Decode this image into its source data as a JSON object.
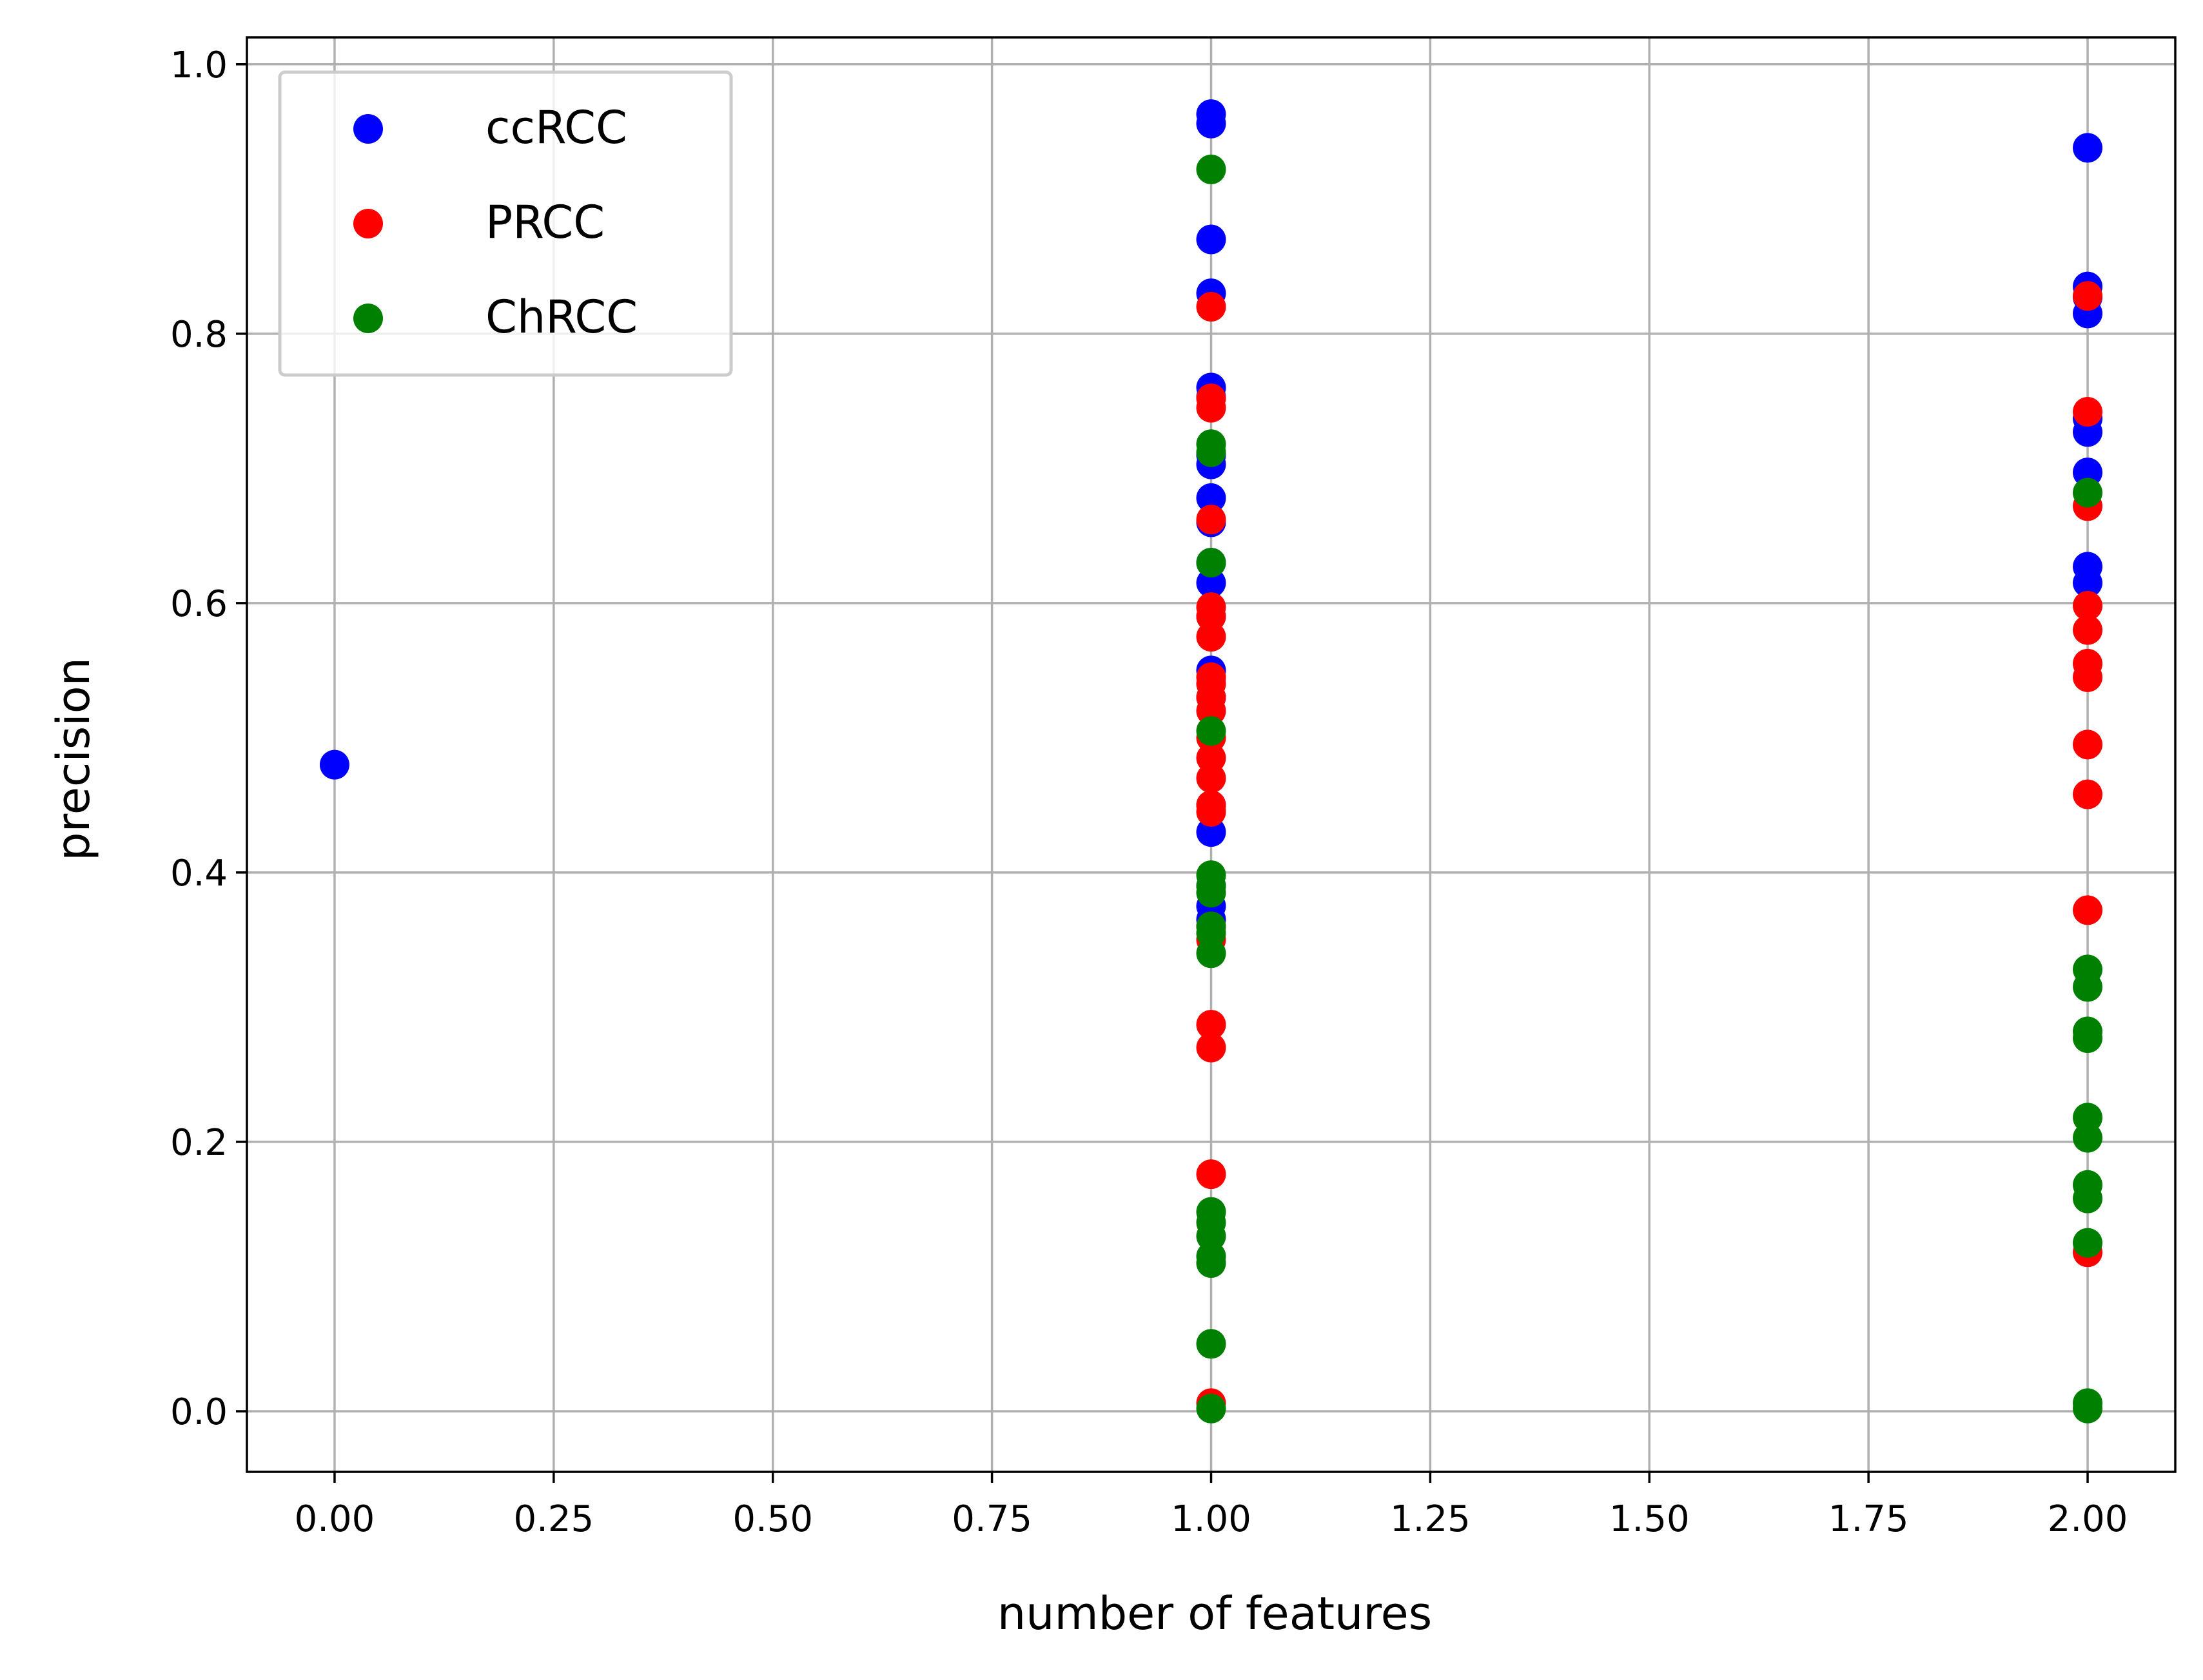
{
  "chart_data": {
    "type": "scatter",
    "title": "",
    "xlabel": "number of features",
    "ylabel": "precision",
    "xlim": [
      -0.1,
      2.1
    ],
    "ylim": [
      -0.045,
      1.02
    ],
    "xticks": [
      "0.00",
      "0.25",
      "0.50",
      "0.75",
      "1.00",
      "1.25",
      "1.50",
      "1.75",
      "2.00"
    ],
    "yticks": [
      "0.0",
      "0.2",
      "0.4",
      "0.6",
      "0.8",
      "1.0"
    ],
    "grid": true,
    "legend_position": "upper-left",
    "series": [
      {
        "name": "ccRCC",
        "color": "#0000ff",
        "points": [
          [
            0,
            0.48
          ],
          [
            1,
            0.963
          ],
          [
            1,
            0.956
          ],
          [
            1,
            0.87
          ],
          [
            1,
            0.83
          ],
          [
            1,
            0.76
          ],
          [
            1,
            0.753
          ],
          [
            1,
            0.71
          ],
          [
            1,
            0.703
          ],
          [
            1,
            0.678
          ],
          [
            1,
            0.66
          ],
          [
            1,
            0.63
          ],
          [
            1,
            0.615
          ],
          [
            1,
            0.59
          ],
          [
            1,
            0.55
          ],
          [
            1,
            0.53
          ],
          [
            1,
            0.45
          ],
          [
            1,
            0.43
          ],
          [
            1,
            0.39
          ],
          [
            1,
            0.375
          ],
          [
            1,
            0.365
          ],
          [
            2,
            0.938
          ],
          [
            2,
            0.835
          ],
          [
            2,
            0.827
          ],
          [
            2,
            0.815
          ],
          [
            2,
            0.737
          ],
          [
            2,
            0.727
          ],
          [
            2,
            0.697
          ],
          [
            2,
            0.627
          ],
          [
            2,
            0.615
          ]
        ]
      },
      {
        "name": "PRCC",
        "color": "#ff0000",
        "points": [
          [
            1,
            0.82
          ],
          [
            1,
            0.752
          ],
          [
            1,
            0.745
          ],
          [
            1,
            0.662
          ],
          [
            1,
            0.597
          ],
          [
            1,
            0.59
          ],
          [
            1,
            0.575
          ],
          [
            1,
            0.545
          ],
          [
            1,
            0.54
          ],
          [
            1,
            0.53
          ],
          [
            1,
            0.52
          ],
          [
            1,
            0.5
          ],
          [
            1,
            0.485
          ],
          [
            1,
            0.47
          ],
          [
            1,
            0.45
          ],
          [
            1,
            0.445
          ],
          [
            1,
            0.36
          ],
          [
            1,
            0.35
          ],
          [
            1,
            0.287
          ],
          [
            1,
            0.27
          ],
          [
            1,
            0.176
          ],
          [
            1,
            0.006
          ],
          [
            2,
            0.828
          ],
          [
            2,
            0.742
          ],
          [
            2,
            0.672
          ],
          [
            2,
            0.598
          ],
          [
            2,
            0.58
          ],
          [
            2,
            0.555
          ],
          [
            2,
            0.545
          ],
          [
            2,
            0.495
          ],
          [
            2,
            0.458
          ],
          [
            2,
            0.372
          ],
          [
            2,
            0.118
          ]
        ]
      },
      {
        "name": "ChRCC",
        "color": "#008000",
        "points": [
          [
            1,
            0.922
          ],
          [
            1,
            0.718
          ],
          [
            1,
            0.712
          ],
          [
            1,
            0.63
          ],
          [
            1,
            0.505
          ],
          [
            1,
            0.398
          ],
          [
            1,
            0.39
          ],
          [
            1,
            0.385
          ],
          [
            1,
            0.36
          ],
          [
            1,
            0.355
          ],
          [
            1,
            0.34
          ],
          [
            1,
            0.148
          ],
          [
            1,
            0.14
          ],
          [
            1,
            0.13
          ],
          [
            1,
            0.115
          ],
          [
            1,
            0.11
          ],
          [
            1,
            0.05
          ],
          [
            1,
            0.002
          ],
          [
            2,
            0.682
          ],
          [
            2,
            0.328
          ],
          [
            2,
            0.315
          ],
          [
            2,
            0.282
          ],
          [
            2,
            0.277
          ],
          [
            2,
            0.218
          ],
          [
            2,
            0.203
          ],
          [
            2,
            0.168
          ],
          [
            2,
            0.158
          ],
          [
            2,
            0.125
          ],
          [
            2,
            0.006
          ],
          [
            2,
            0.002
          ]
        ]
      }
    ]
  }
}
